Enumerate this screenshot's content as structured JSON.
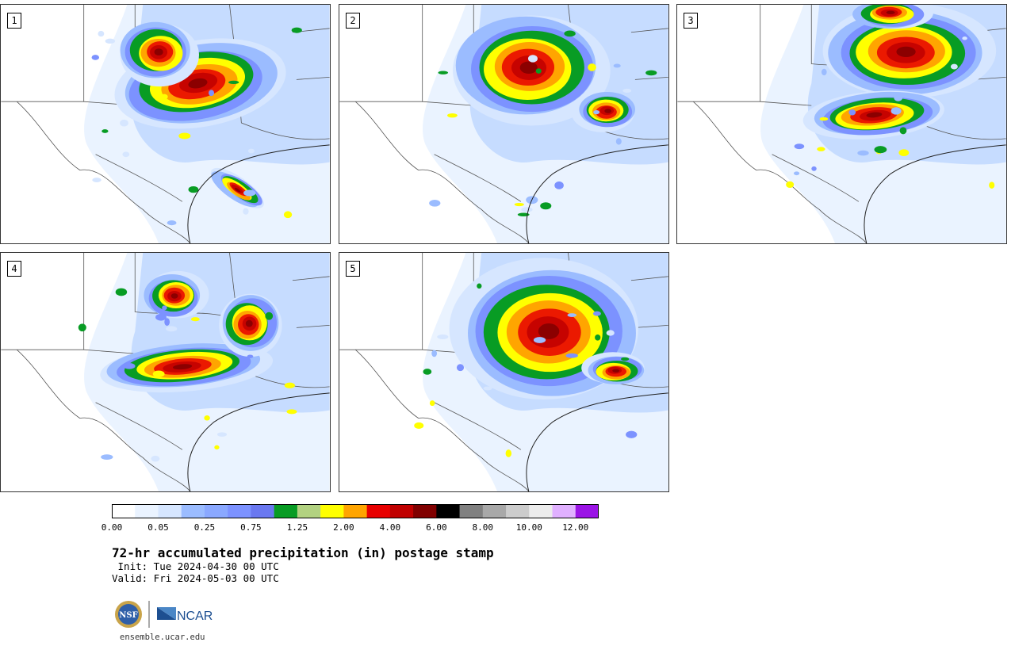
{
  "panels": [
    {
      "label": "1"
    },
    {
      "label": "2"
    },
    {
      "label": "3"
    },
    {
      "label": "4"
    },
    {
      "label": "5"
    }
  ],
  "colorbar": {
    "colors": [
      "#ffffff",
      "#eaf3ff",
      "#d6e6ff",
      "#9bbcff",
      "#8aa8ff",
      "#7c92ff",
      "#6a78f0",
      "#089c24",
      "#b2d280",
      "#ffff00",
      "#ffa500",
      "#e80000",
      "#c00000",
      "#800000",
      "#000000",
      "#808080",
      "#a8a8a8",
      "#cccccc",
      "#ececec",
      "#e0b0ff",
      "#9b14e6"
    ],
    "tick_labels": [
      "0.00",
      "0.05",
      "0.25",
      "0.75",
      "1.25",
      "2.00",
      "4.00",
      "6.00",
      "8.00",
      "10.00",
      "12.00"
    ]
  },
  "title": "72-hr accumulated precipitation (in) postage stamp",
  "init_line": " Init: Tue 2024-04-30 00 UTC",
  "valid_line": "Valid: Fri 2024-05-03 00 UTC",
  "logos": {
    "nsf": "NSF",
    "ncar": "NCAR"
  },
  "url": "ensemble.ucar.edu"
}
